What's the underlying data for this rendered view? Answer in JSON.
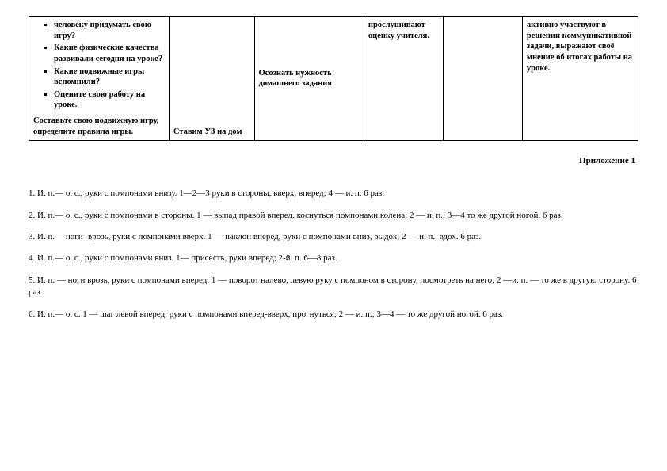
{
  "table": {
    "col1": {
      "bullets": [
        "человеку придумать свою игру?",
        "Какие физические качества развивали сегодня на уроке?",
        "Какие подвижные игры вспомнили?",
        "Оцените свою работу на уроке."
      ],
      "bottom": "Составьте свою подвижную игру, определите правила игры."
    },
    "col2": "Ставим УЗ на дом",
    "col3": "Осознать нужность домашнего задания",
    "col4": "прослушивают оценку учителя.",
    "col5": "",
    "col6": "активно участвуют в решении коммуникативной задачи, выражают своё мнение об итогах работы на уроке."
  },
  "appendix_label": "Приложение 1",
  "exercises": [
    "1.  И. п.— о. с., руки с помпонами внизу. 1—2—3 руки в стороны, вверх, вперед; 4 — и. п. 6 раз.",
    "2.  И. п.— о. с., руки с помпонами в стороны. 1 — выпад правой вперед, коснуться  помпонами колена; 2 — и. п.; 3—4 то же другой ногой. 6 раз.",
    "3.   И. п.— ноги- врозь, руки с помпонами вверх.  1 — наклон вперед, руки с помпонами вниз, выдох; 2 — и. п., вдох. 6 раз.",
    "4.   И. п.— о. с., руки с помпонами  вниз.  1— присесть, руки вперед; 2-й. п. 6—8 раз.",
    "5.  И. п. — ноги врозь, руки с помпонами вперед. 1 — поворот налево, левую руку с помпоном в сторону, посмотреть на него; 2 —и. п. —  то же в другую сторону. 6 раз.",
    "6.  И. п.— о. с. 1 — шаг левой вперед, руки с помпонами  вперед-вверх,  прогнуться;   2 — и.  п.;    3—4 — то же другой  ногой. 6 раз."
  ]
}
